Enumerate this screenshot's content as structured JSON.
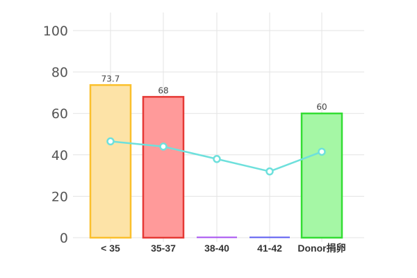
{
  "chart_data": {
    "type": "bar",
    "categories": [
      "< 35",
      "35-37",
      "38-40",
      "41-42",
      "Donor捐卵"
    ],
    "series": [
      {
        "kind": "bar",
        "values": [
          73.7,
          68,
          0,
          0,
          60
        ],
        "labels": [
          "73.7",
          "68",
          "",
          "",
          "60"
        ]
      },
      {
        "kind": "line",
        "values": [
          46.5,
          44,
          38,
          32,
          41.5
        ]
      }
    ],
    "bar_colors": [
      {
        "fill": "#fde3a7",
        "stroke": "#fbc02d"
      },
      {
        "fill": "#ff9a9a",
        "stroke": "#e53935"
      },
      {
        "fill": "#e0b3ff",
        "stroke": "#a64ff0"
      },
      {
        "fill": "#b3b3ff",
        "stroke": "#5a5af0"
      },
      {
        "fill": "#a5f7a5",
        "stroke": "#33dd33"
      }
    ],
    "line_color": "#6ee0dc",
    "ylim": [
      0,
      100
    ],
    "yticks": [
      0,
      20,
      40,
      60,
      80,
      100
    ],
    "grid": true,
    "legend": "none"
  }
}
